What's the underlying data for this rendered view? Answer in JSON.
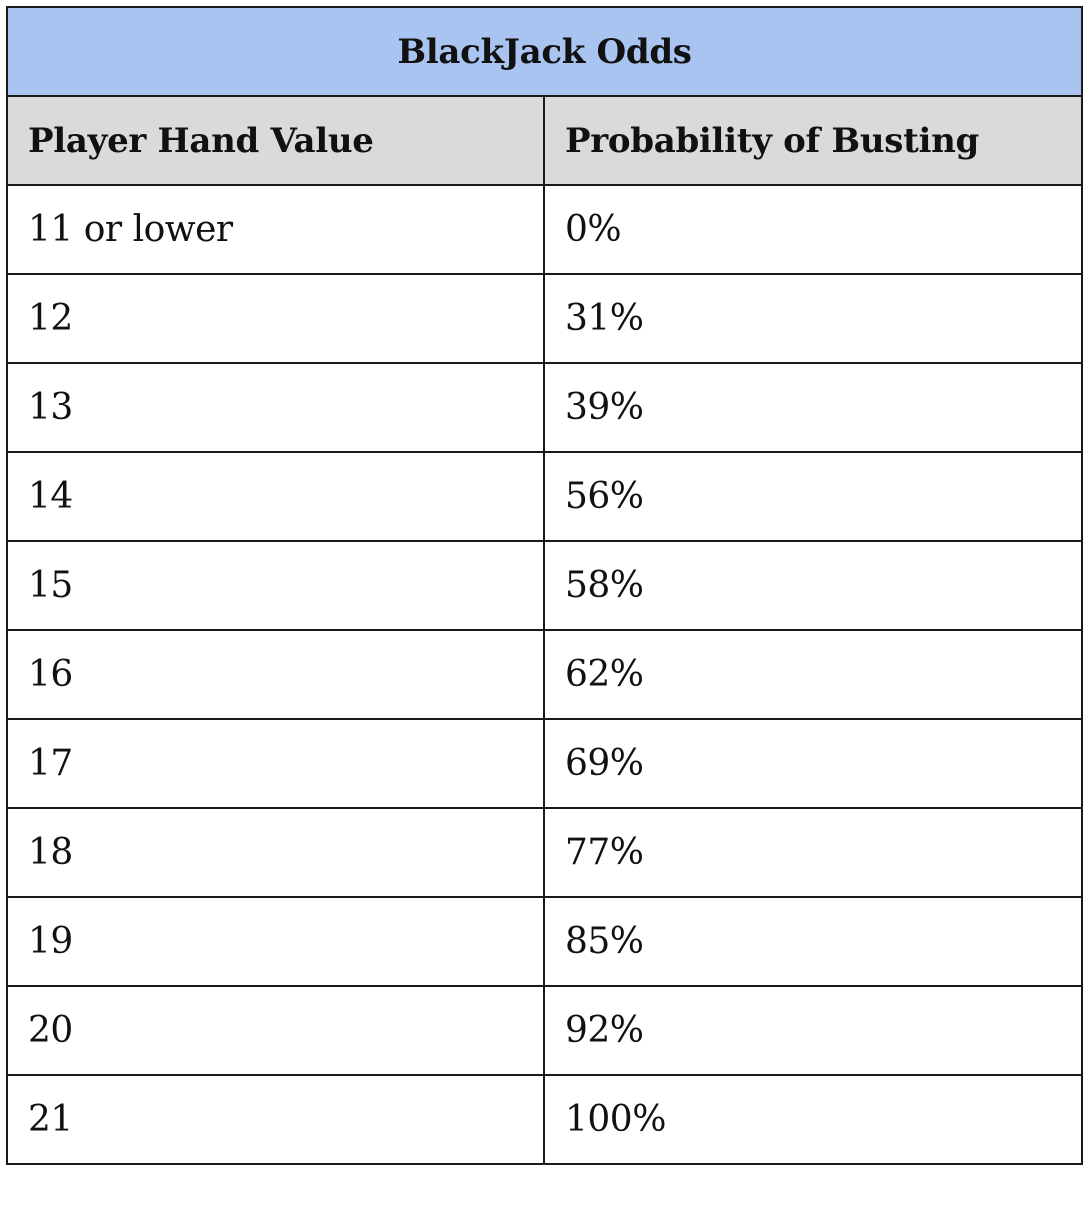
{
  "table": {
    "title": "BlackJack Odds",
    "headers": [
      "Player Hand Value",
      "Probability of Busting"
    ],
    "rows": [
      [
        "11 or lower",
        "0%"
      ],
      [
        "12",
        "31%"
      ],
      [
        "13",
        "39%"
      ],
      [
        "14",
        "56%"
      ],
      [
        "15",
        "58%"
      ],
      [
        "16",
        "62%"
      ],
      [
        "17",
        "69%"
      ],
      [
        "18",
        "77%"
      ],
      [
        "19",
        "85%"
      ],
      [
        "20",
        "92%"
      ],
      [
        "21",
        "100%"
      ]
    ]
  },
  "colors": {
    "title_background": "#a9c4f0",
    "header_background": "#dadada",
    "border": "#1a1a1a"
  }
}
